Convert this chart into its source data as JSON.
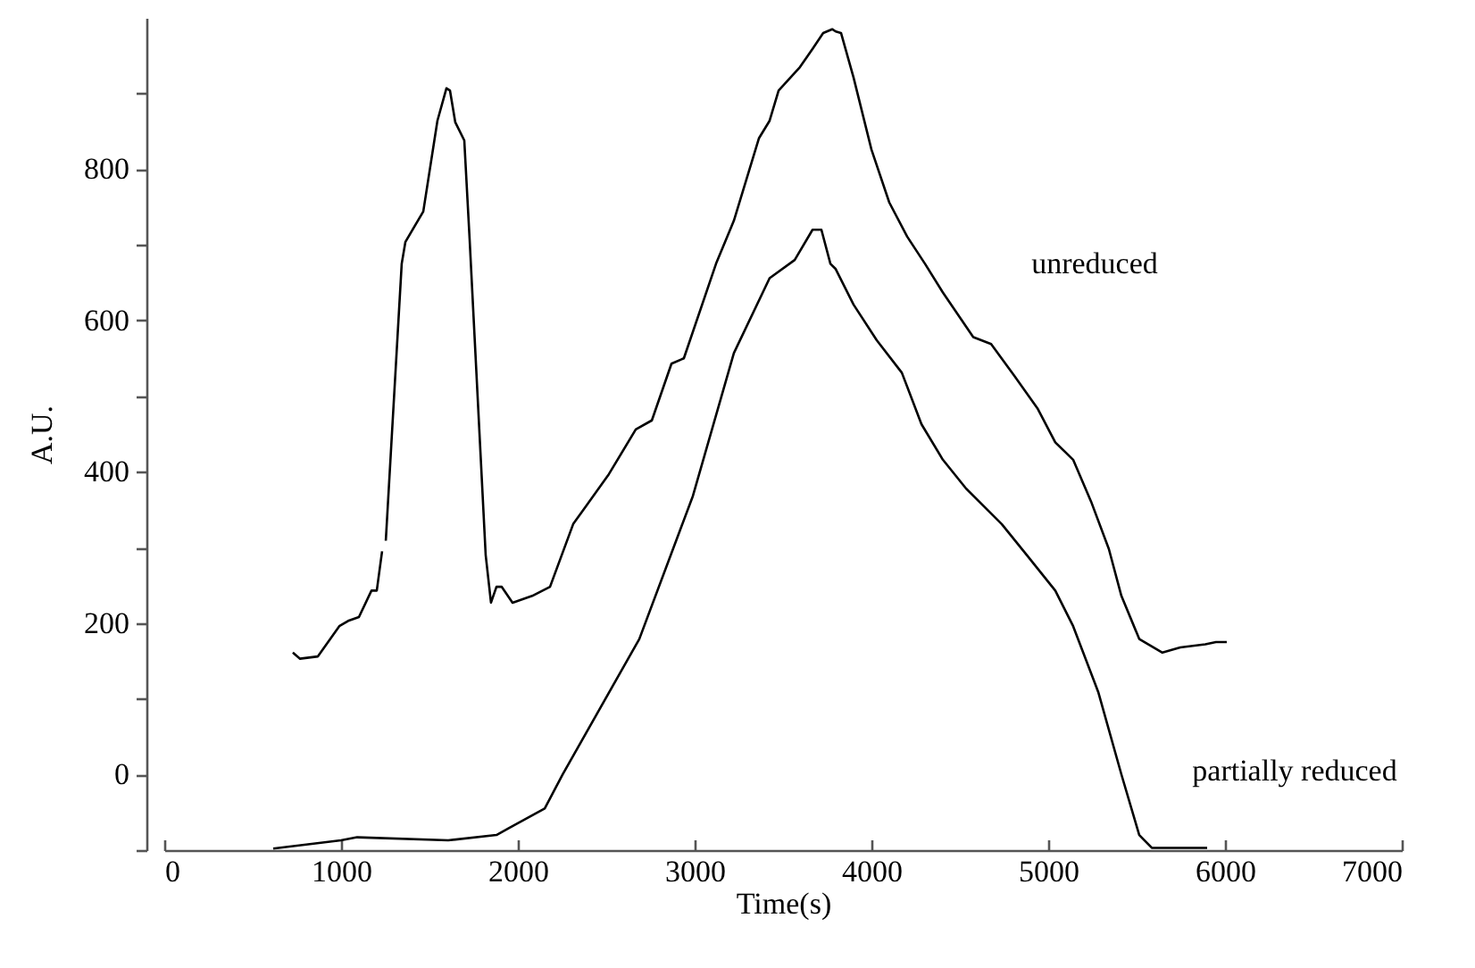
{
  "chart_data": {
    "type": "line",
    "xlabel": "Time(s)",
    "ylabel": "A.U.",
    "xlim": [
      0,
      7000
    ],
    "ylim": [
      -100,
      1000
    ],
    "xticks": [
      0,
      1000,
      2000,
      3000,
      4000,
      5000,
      6000,
      7000
    ],
    "yticks": [
      {
        "value": -100,
        "label": null
      },
      0,
      {
        "value": 100,
        "label": null
      },
      200,
      {
        "value": 300,
        "label": null
      },
      400,
      {
        "value": 500,
        "label": null
      },
      600,
      {
        "value": 700,
        "label": null
      },
      800,
      {
        "value": 900,
        "label": null
      }
    ],
    "grid": false,
    "legend": false,
    "marker": "none",
    "line_style": "solid",
    "series": [
      {
        "name": "unreduced",
        "color": "#000000",
        "x": [
          727,
          768,
          869,
          990,
          1040,
          1101,
          1172,
          1202,
          1232,
          1240,
          1253,
          1343,
          1364,
          1465,
          1545,
          1596,
          1616,
          1646,
          1697,
          1727,
          1818,
          1848,
          1879,
          1909,
          1970,
          2081,
          2182,
          2313,
          2384,
          2515,
          2667,
          2758,
          2869,
          2939,
          3121,
          3222,
          3364,
          3424,
          3475,
          3596,
          3667,
          3727,
          3778,
          3798,
          3828,
          3899,
          4000,
          4101,
          4202,
          4303,
          4404,
          4576,
          4677,
          4808,
          4939,
          5040,
          5141,
          5242,
          5343,
          5414,
          5515,
          5646,
          5747,
          5889,
          5949,
          6010
        ],
        "values": [
          161,
          153,
          156,
          196,
          203,
          208,
          243,
          243,
          295,
          null,
          309,
          675,
          704,
          744,
          864,
          907,
          904,
          862,
          838,
          708,
          290,
          227,
          248,
          248,
          227,
          236,
          248,
          331,
          354,
          397,
          456,
          468,
          543,
          550,
          675,
          732,
          841,
          864,
          904,
          935,
          959,
          980,
          985,
          982,
          980,
          921,
          826,
          756,
          711,
          675,
          637,
          578,
          569,
          527,
          484,
          439,
          416,
          361,
          298,
          236,
          179,
          161,
          168,
          172,
          175,
          175
        ]
      },
      {
        "name": "partially reduced",
        "color": "#000000",
        "x": [
          616,
          1000,
          1091,
          1606,
          1879,
          1949,
          2152,
          2253,
          2687,
          2990,
          3222,
          3424,
          3566,
          3667,
          3717,
          3768,
          3798,
          3899,
          4030,
          4172,
          4283,
          4404,
          4535,
          4737,
          4879,
          5040,
          5141,
          5283,
          5414,
          5515,
          5586,
          5899
        ],
        "values": [
          -98,
          -87,
          -83,
          -87,
          -80,
          -71,
          -45,
          0,
          179,
          368,
          557,
          656,
          680,
          720,
          720,
          675,
          668,
          621,
          574,
          531,
          463,
          416,
          378,
          331,
          290,
          243,
          196,
          109,
          0,
          -80,
          -97,
          -97
        ]
      }
    ]
  }
}
